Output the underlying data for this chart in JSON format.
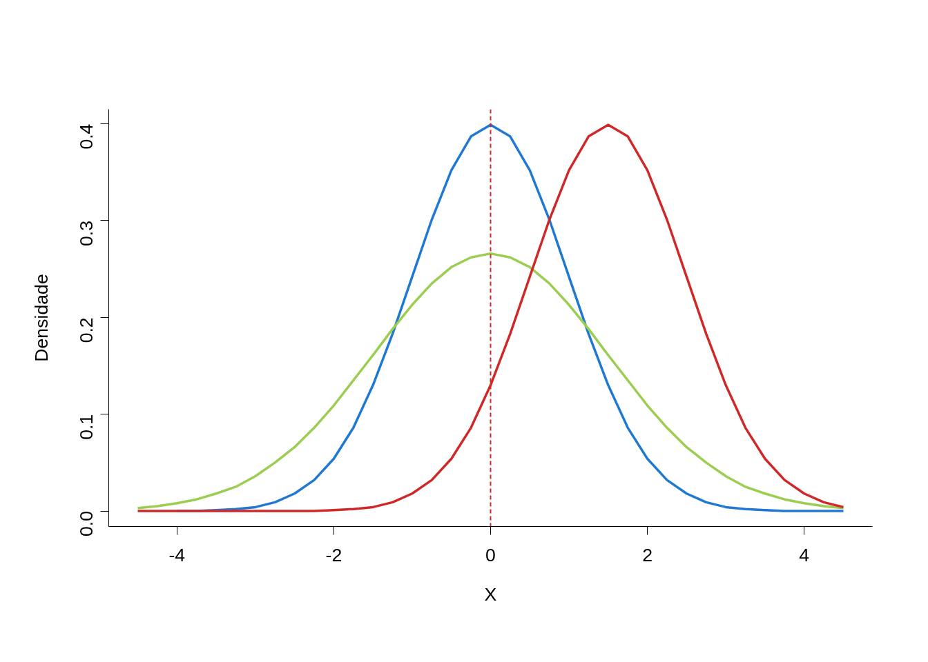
{
  "chart_data": {
    "type": "line",
    "xlabel": "X",
    "ylabel": "Densidade",
    "x": [
      -4.5,
      -4.25,
      -4,
      -3.75,
      -3.5,
      -3.25,
      -3,
      -2.75,
      -2.5,
      -2.25,
      -2,
      -1.75,
      -1.5,
      -1.25,
      -1,
      -0.75,
      -0.5,
      -0.25,
      0,
      0.25,
      0.5,
      0.75,
      1,
      1.25,
      1.5,
      1.75,
      2,
      2.25,
      2.5,
      2.75,
      3,
      3.25,
      3.5,
      3.75,
      4,
      4.25,
      4.5
    ],
    "series": [
      {
        "color": "#1f78d2",
        "values": [
          null,
          null,
          0,
          0,
          0.001,
          0.002,
          0.004,
          0.009,
          0.018,
          0.032,
          0.054,
          0.086,
          0.13,
          0.183,
          0.242,
          0.301,
          0.352,
          0.387,
          0.399,
          0.387,
          0.352,
          0.301,
          0.242,
          0.183,
          0.13,
          0.086,
          0.054,
          0.032,
          0.018,
          0.009,
          0.004,
          0.002,
          0.001,
          0,
          0,
          0,
          0
        ]
      },
      {
        "color": "#9acd50",
        "values": [
          0.003,
          0.005,
          0.008,
          0.012,
          0.018,
          0.025,
          0.036,
          0.05,
          0.066,
          0.086,
          0.109,
          0.135,
          0.161,
          0.188,
          0.213,
          0.235,
          0.252,
          0.262,
          0.266,
          0.262,
          0.252,
          0.235,
          0.213,
          0.188,
          0.161,
          0.135,
          0.109,
          0.086,
          0.066,
          0.05,
          0.036,
          0.025,
          0.018,
          0.012,
          0.008,
          0.005,
          0.003
        ]
      },
      {
        "color": "#d02828",
        "values": [
          0,
          0,
          0,
          0,
          0,
          0,
          0,
          0,
          0,
          0,
          0.001,
          0.002,
          0.004,
          0.009,
          0.018,
          0.032,
          0.054,
          0.086,
          0.13,
          0.183,
          0.242,
          0.301,
          0.352,
          0.387,
          0.399,
          0.387,
          0.352,
          0.301,
          0.242,
          0.183,
          0.13,
          0.086,
          0.054,
          0.032,
          0.018,
          0.009,
          0.004
        ]
      }
    ],
    "xlim": [
      -4.87,
      4.87
    ],
    "ylim": [
      -0.016,
      0.415
    ],
    "xticks": [
      -4,
      -2,
      0,
      2,
      4
    ],
    "yticks": [
      {
        "value": 0,
        "label": "0.0"
      },
      {
        "value": 0.1,
        "label": "0.1"
      },
      {
        "value": 0.2,
        "label": "0.2"
      },
      {
        "value": 0.3,
        "label": "0.3"
      },
      {
        "value": 0.4,
        "label": "0.4"
      }
    ],
    "ref_lines": [
      {
        "axis": "x",
        "value": 0,
        "color": "#d02828",
        "line_style": "dashed"
      }
    ],
    "grid": false,
    "marker": "none",
    "line_style": "solid"
  }
}
